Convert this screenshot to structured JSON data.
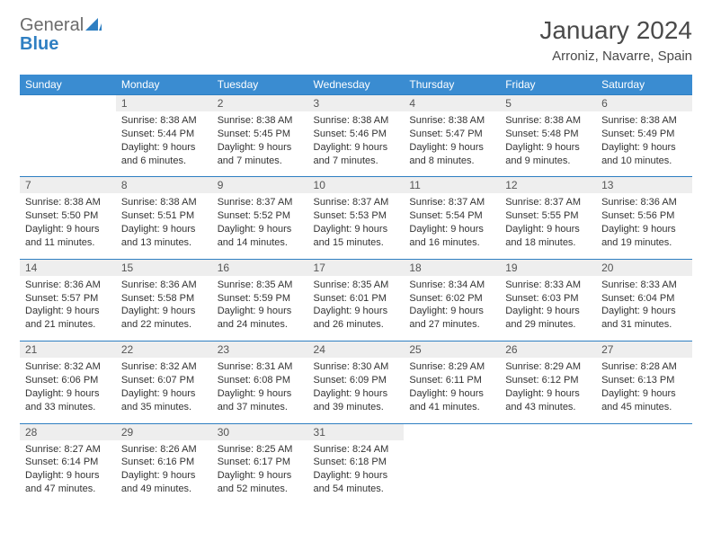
{
  "brand": {
    "part1": "General",
    "part2": "Blue"
  },
  "title": "January 2024",
  "location": "Arroniz, Navarre, Spain",
  "colors": {
    "header_bg": "#3a8cd1",
    "header_text": "#ffffff",
    "border": "#2f7fc2",
    "daynum_bg": "#eeeeee",
    "text": "#333333",
    "logo_gray": "#6b6b6b",
    "logo_blue": "#2f7fc2"
  },
  "weekdays": [
    "Sunday",
    "Monday",
    "Tuesday",
    "Wednesday",
    "Thursday",
    "Friday",
    "Saturday"
  ],
  "weeks": [
    [
      {
        "empty": true
      },
      {
        "day": "1",
        "sunrise": "Sunrise: 8:38 AM",
        "sunset": "Sunset: 5:44 PM",
        "daylight1": "Daylight: 9 hours",
        "daylight2": "and 6 minutes."
      },
      {
        "day": "2",
        "sunrise": "Sunrise: 8:38 AM",
        "sunset": "Sunset: 5:45 PM",
        "daylight1": "Daylight: 9 hours",
        "daylight2": "and 7 minutes."
      },
      {
        "day": "3",
        "sunrise": "Sunrise: 8:38 AM",
        "sunset": "Sunset: 5:46 PM",
        "daylight1": "Daylight: 9 hours",
        "daylight2": "and 7 minutes."
      },
      {
        "day": "4",
        "sunrise": "Sunrise: 8:38 AM",
        "sunset": "Sunset: 5:47 PM",
        "daylight1": "Daylight: 9 hours",
        "daylight2": "and 8 minutes."
      },
      {
        "day": "5",
        "sunrise": "Sunrise: 8:38 AM",
        "sunset": "Sunset: 5:48 PM",
        "daylight1": "Daylight: 9 hours",
        "daylight2": "and 9 minutes."
      },
      {
        "day": "6",
        "sunrise": "Sunrise: 8:38 AM",
        "sunset": "Sunset: 5:49 PM",
        "daylight1": "Daylight: 9 hours",
        "daylight2": "and 10 minutes."
      }
    ],
    [
      {
        "day": "7",
        "sunrise": "Sunrise: 8:38 AM",
        "sunset": "Sunset: 5:50 PM",
        "daylight1": "Daylight: 9 hours",
        "daylight2": "and 11 minutes."
      },
      {
        "day": "8",
        "sunrise": "Sunrise: 8:38 AM",
        "sunset": "Sunset: 5:51 PM",
        "daylight1": "Daylight: 9 hours",
        "daylight2": "and 13 minutes."
      },
      {
        "day": "9",
        "sunrise": "Sunrise: 8:37 AM",
        "sunset": "Sunset: 5:52 PM",
        "daylight1": "Daylight: 9 hours",
        "daylight2": "and 14 minutes."
      },
      {
        "day": "10",
        "sunrise": "Sunrise: 8:37 AM",
        "sunset": "Sunset: 5:53 PM",
        "daylight1": "Daylight: 9 hours",
        "daylight2": "and 15 minutes."
      },
      {
        "day": "11",
        "sunrise": "Sunrise: 8:37 AM",
        "sunset": "Sunset: 5:54 PM",
        "daylight1": "Daylight: 9 hours",
        "daylight2": "and 16 minutes."
      },
      {
        "day": "12",
        "sunrise": "Sunrise: 8:37 AM",
        "sunset": "Sunset: 5:55 PM",
        "daylight1": "Daylight: 9 hours",
        "daylight2": "and 18 minutes."
      },
      {
        "day": "13",
        "sunrise": "Sunrise: 8:36 AM",
        "sunset": "Sunset: 5:56 PM",
        "daylight1": "Daylight: 9 hours",
        "daylight2": "and 19 minutes."
      }
    ],
    [
      {
        "day": "14",
        "sunrise": "Sunrise: 8:36 AM",
        "sunset": "Sunset: 5:57 PM",
        "daylight1": "Daylight: 9 hours",
        "daylight2": "and 21 minutes."
      },
      {
        "day": "15",
        "sunrise": "Sunrise: 8:36 AM",
        "sunset": "Sunset: 5:58 PM",
        "daylight1": "Daylight: 9 hours",
        "daylight2": "and 22 minutes."
      },
      {
        "day": "16",
        "sunrise": "Sunrise: 8:35 AM",
        "sunset": "Sunset: 5:59 PM",
        "daylight1": "Daylight: 9 hours",
        "daylight2": "and 24 minutes."
      },
      {
        "day": "17",
        "sunrise": "Sunrise: 8:35 AM",
        "sunset": "Sunset: 6:01 PM",
        "daylight1": "Daylight: 9 hours",
        "daylight2": "and 26 minutes."
      },
      {
        "day": "18",
        "sunrise": "Sunrise: 8:34 AM",
        "sunset": "Sunset: 6:02 PM",
        "daylight1": "Daylight: 9 hours",
        "daylight2": "and 27 minutes."
      },
      {
        "day": "19",
        "sunrise": "Sunrise: 8:33 AM",
        "sunset": "Sunset: 6:03 PM",
        "daylight1": "Daylight: 9 hours",
        "daylight2": "and 29 minutes."
      },
      {
        "day": "20",
        "sunrise": "Sunrise: 8:33 AM",
        "sunset": "Sunset: 6:04 PM",
        "daylight1": "Daylight: 9 hours",
        "daylight2": "and 31 minutes."
      }
    ],
    [
      {
        "day": "21",
        "sunrise": "Sunrise: 8:32 AM",
        "sunset": "Sunset: 6:06 PM",
        "daylight1": "Daylight: 9 hours",
        "daylight2": "and 33 minutes."
      },
      {
        "day": "22",
        "sunrise": "Sunrise: 8:32 AM",
        "sunset": "Sunset: 6:07 PM",
        "daylight1": "Daylight: 9 hours",
        "daylight2": "and 35 minutes."
      },
      {
        "day": "23",
        "sunrise": "Sunrise: 8:31 AM",
        "sunset": "Sunset: 6:08 PM",
        "daylight1": "Daylight: 9 hours",
        "daylight2": "and 37 minutes."
      },
      {
        "day": "24",
        "sunrise": "Sunrise: 8:30 AM",
        "sunset": "Sunset: 6:09 PM",
        "daylight1": "Daylight: 9 hours",
        "daylight2": "and 39 minutes."
      },
      {
        "day": "25",
        "sunrise": "Sunrise: 8:29 AM",
        "sunset": "Sunset: 6:11 PM",
        "daylight1": "Daylight: 9 hours",
        "daylight2": "and 41 minutes."
      },
      {
        "day": "26",
        "sunrise": "Sunrise: 8:29 AM",
        "sunset": "Sunset: 6:12 PM",
        "daylight1": "Daylight: 9 hours",
        "daylight2": "and 43 minutes."
      },
      {
        "day": "27",
        "sunrise": "Sunrise: 8:28 AM",
        "sunset": "Sunset: 6:13 PM",
        "daylight1": "Daylight: 9 hours",
        "daylight2": "and 45 minutes."
      }
    ],
    [
      {
        "day": "28",
        "sunrise": "Sunrise: 8:27 AM",
        "sunset": "Sunset: 6:14 PM",
        "daylight1": "Daylight: 9 hours",
        "daylight2": "and 47 minutes."
      },
      {
        "day": "29",
        "sunrise": "Sunrise: 8:26 AM",
        "sunset": "Sunset: 6:16 PM",
        "daylight1": "Daylight: 9 hours",
        "daylight2": "and 49 minutes."
      },
      {
        "day": "30",
        "sunrise": "Sunrise: 8:25 AM",
        "sunset": "Sunset: 6:17 PM",
        "daylight1": "Daylight: 9 hours",
        "daylight2": "and 52 minutes."
      },
      {
        "day": "31",
        "sunrise": "Sunrise: 8:24 AM",
        "sunset": "Sunset: 6:18 PM",
        "daylight1": "Daylight: 9 hours",
        "daylight2": "and 54 minutes."
      },
      {
        "empty": true
      },
      {
        "empty": true
      },
      {
        "empty": true
      }
    ]
  ]
}
